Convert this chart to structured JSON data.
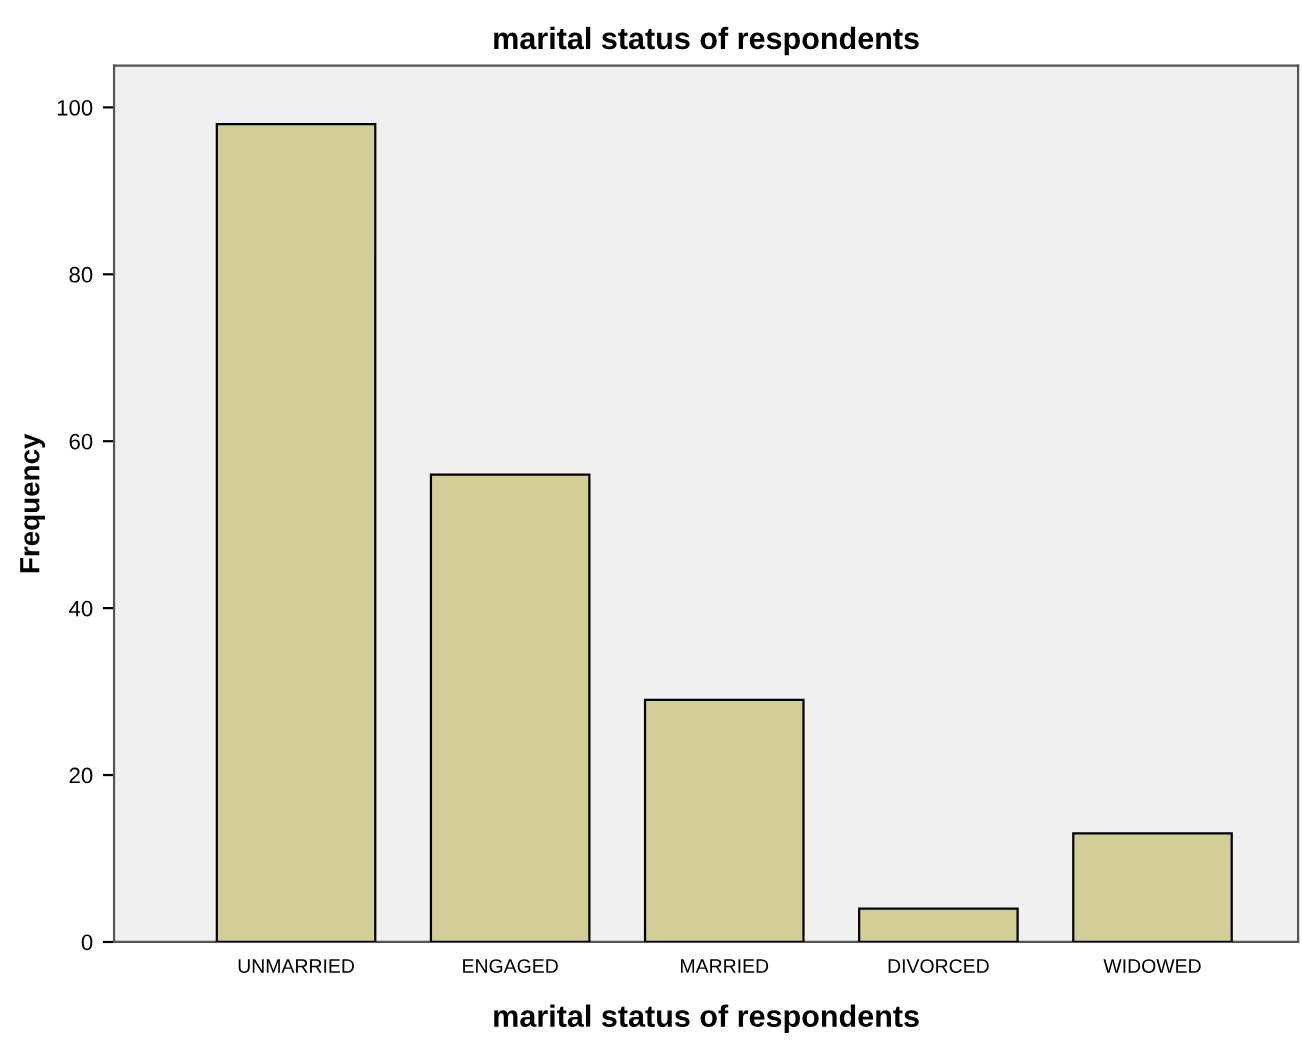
{
  "chart_data": {
    "type": "bar",
    "title": "marital status of respondents",
    "xlabel": "marital status of respondents",
    "ylabel": "Frequency",
    "categories": [
      "UNMARRIED",
      "ENGAGED",
      "MARRIED",
      "DIVORCED",
      "WIDOWED"
    ],
    "values": [
      98,
      56,
      29,
      4,
      13
    ],
    "color": "#d3ce97",
    "ylim": [
      0,
      105
    ],
    "yticks": [
      0,
      20,
      40,
      60,
      80,
      100
    ],
    "grid": false
  }
}
